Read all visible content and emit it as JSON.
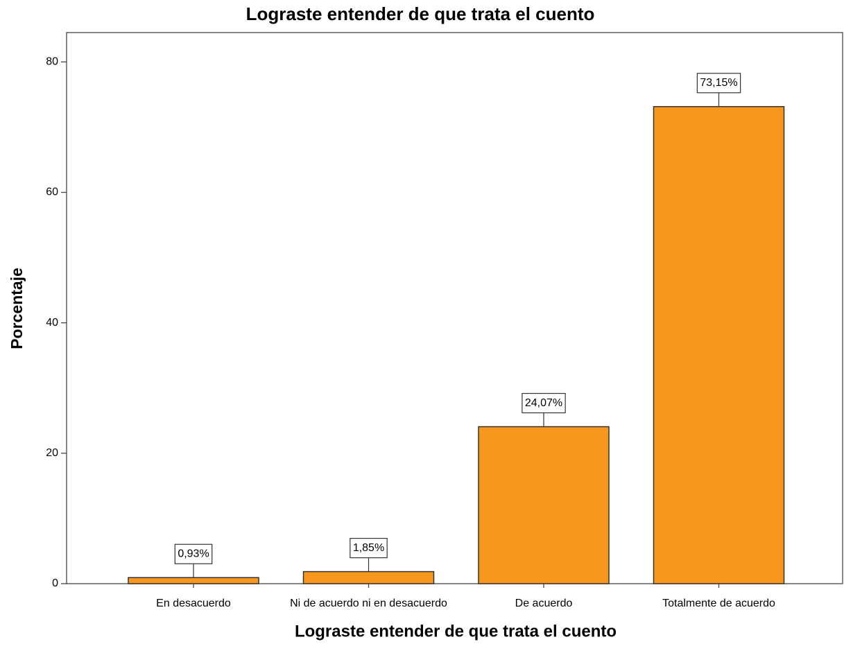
{
  "chart_data": {
    "type": "bar",
    "title": "Lograste entender de que trata el cuento",
    "x_label": "Lograste entender de que trata el cuento",
    "y_label": "Porcentaje",
    "categories": [
      "En desacuerdo",
      "Ni de acuerdo ni en desacuerdo",
      "De acuerdo",
      "Totalmente de acuerdo"
    ],
    "values": [
      0.93,
      1.85,
      24.07,
      73.15
    ],
    "value_labels": [
      "0,93%",
      "1,85%",
      "24,07%",
      "73,15%"
    ],
    "color": "#f7971e",
    "ylim": [
      0,
      84.5
    ],
    "yticks": [
      0,
      20,
      40,
      60,
      80
    ]
  }
}
